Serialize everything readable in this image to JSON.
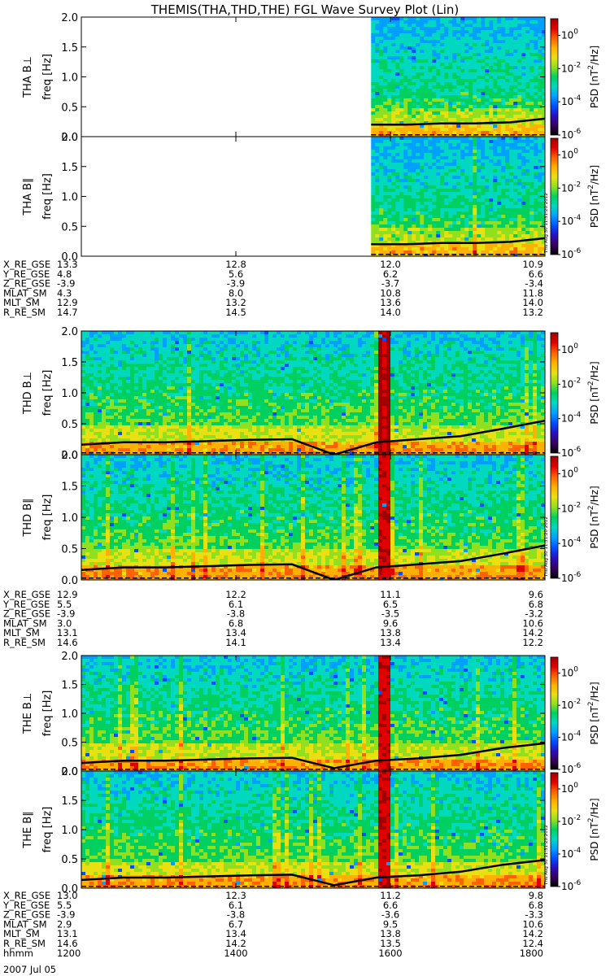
{
  "title": "THEMIS(THA,THD,THE) FGL Wave Survey Plot (Lin)",
  "colors": {
    "background": "#ffffff",
    "axis": "#000000"
  },
  "colorscale": [
    "#000000",
    "#3a0060",
    "#2a10c0",
    "#0050ff",
    "#00a0ff",
    "#00d8c0",
    "#00d060",
    "#90e020",
    "#e8e010",
    "#ffb000",
    "#ff6000",
    "#e00000",
    "#a00000"
  ],
  "colorbar": {
    "label": "PSD [nT²/Hz]",
    "label_main": "PSD [nT",
    "label_sup": "2",
    "label_end": "/Hz]",
    "ticks": [
      {
        "base": "10",
        "exp": "0"
      },
      {
        "base": "10",
        "exp": "-2"
      },
      {
        "base": "10",
        "exp": "-4"
      },
      {
        "base": "10",
        "exp": "-6"
      }
    ]
  },
  "stamp": "Thu Aug 30 11:31:20 2012",
  "yticks": [
    "2.0",
    "1.5",
    "1.0",
    "0.5",
    "0.0"
  ],
  "chart_data": {
    "type": "heatmap",
    "x_unit": "hhmm",
    "xlim": [
      "1200",
      "1800"
    ],
    "xticks": [
      "1200",
      "1400",
      "1600",
      "1800"
    ],
    "date": "2007 Jul 05",
    "ylim": [
      0,
      2.0
    ],
    "ylabel": "freq [Hz]",
    "zlabel": "PSD [nT²/Hz]",
    "zscale": "log",
    "zlim": [
      1e-06,
      10.0
    ],
    "panels": [
      {
        "probe": "THA",
        "label": "THA B⊥",
        "data_start": "1545",
        "line_solid": [
          0.2,
          0.2,
          0.22,
          0.22,
          0.24,
          0.3
        ]
      },
      {
        "probe": "THA",
        "label": "THA B∥",
        "data_start": "1545",
        "line_solid": [
          0.2,
          0.2,
          0.22,
          0.22,
          0.24,
          0.3
        ]
      },
      {
        "probe": "THD",
        "label": "THD B⊥",
        "data_start": "1200",
        "line_solid": [
          0.16,
          0.2,
          0.2,
          0.22,
          0.24,
          0.25,
          0.0,
          0.2,
          0.25,
          0.3,
          0.42,
          0.55
        ]
      },
      {
        "probe": "THD",
        "label": "THD B∥",
        "data_start": "1200",
        "line_solid": [
          0.16,
          0.2,
          0.2,
          0.22,
          0.24,
          0.25,
          0.0,
          0.2,
          0.25,
          0.3,
          0.42,
          0.55
        ]
      },
      {
        "probe": "THE",
        "label": "THE B⊥",
        "data_start": "1200",
        "line_solid": [
          0.14,
          0.18,
          0.18,
          0.2,
          0.22,
          0.23,
          0.05,
          0.18,
          0.22,
          0.28,
          0.4,
          0.48
        ]
      },
      {
        "probe": "THE",
        "label": "THE B∥",
        "data_start": "1200",
        "line_solid": [
          0.14,
          0.18,
          0.18,
          0.2,
          0.22,
          0.23,
          0.05,
          0.18,
          0.22,
          0.28,
          0.4,
          0.48
        ]
      }
    ],
    "ephemeris": {
      "THA": {
        "labels": [
          "X_RE_GSE",
          "Y_RE_GSE",
          "Z_RE_GSE",
          "MLAT_SM",
          "MLT_SM",
          "R_RE_SM"
        ],
        "cols": [
          [
            "13.3",
            "4.8",
            "-3.9",
            "4.3",
            "12.9",
            "14.7"
          ],
          [
            "12.8",
            "5.6",
            "-3.9",
            "8.0",
            "13.2",
            "14.5"
          ],
          [
            "12.0",
            "6.2",
            "-3.7",
            "10.8",
            "13.6",
            "14.0"
          ],
          [
            "10.9",
            "6.6",
            "-3.4",
            "11.8",
            "14.0",
            "13.2"
          ]
        ]
      },
      "THD": {
        "labels": [
          "X_RE_GSE",
          "Y_RE_GSE",
          "Z_RE_GSE",
          "MLAT_SM",
          "MLT_SM",
          "R_RE_SM"
        ],
        "cols": [
          [
            "12.9",
            "5.5",
            "-3.9",
            "3.0",
            "13.1",
            "14.6"
          ],
          [
            "12.2",
            "6.1",
            "-3.8",
            "6.8",
            "13.4",
            "14.1"
          ],
          [
            "11.1",
            "6.5",
            "-3.5",
            "9.6",
            "13.8",
            "13.4"
          ],
          [
            "9.6",
            "6.8",
            "-3.2",
            "10.6",
            "14.2",
            "12.2"
          ]
        ]
      },
      "THE": {
        "labels": [
          "X_RE_GSE",
          "Y_RE_GSE",
          "Z_RE_GSE",
          "MLAT_SM",
          "MLT_SM",
          "R_RE_SM",
          "hhmm"
        ],
        "cols": [
          [
            "13.0",
            "5.5",
            "-3.9",
            "2.9",
            "13.1",
            "14.6",
            "1200"
          ],
          [
            "12.3",
            "6.1",
            "-3.8",
            "6.7",
            "13.4",
            "14.2",
            "1400"
          ],
          [
            "11.2",
            "6.6",
            "-3.6",
            "9.5",
            "13.8",
            "13.5",
            "1600"
          ],
          [
            "9.8",
            "6.8",
            "-3.3",
            "10.6",
            "14.2",
            "12.4",
            "1800"
          ]
        ]
      }
    }
  }
}
